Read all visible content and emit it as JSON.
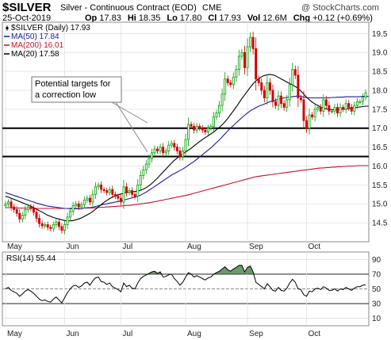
{
  "header": {
    "symbol": "$SILVER",
    "description": "Silver - Continuous Contract (EOD)",
    "exchange": "CME",
    "date": "25-Oct-2019",
    "stats": [
      {
        "label": "Op",
        "value": "17.83"
      },
      {
        "label": "Hi",
        "value": "18.35"
      },
      {
        "label": "Lo",
        "value": "17.80"
      },
      {
        "label": "Cl",
        "value": "17.93"
      },
      {
        "label": "Vol",
        "value": "12.6M"
      },
      {
        "label": "Chg",
        "value": "+0.12 (+0.69%)"
      }
    ],
    "watermark": "@ StockCharts.com",
    "chg_color": "#00a000"
  },
  "legend": [
    {
      "text": "$SILVER (Daily) 17.93",
      "color": "#000000",
      "marker": "candle"
    },
    {
      "text": "MA(50) 17.84",
      "color": "#1a1aa0",
      "marker": "line"
    },
    {
      "text": "MA(200) 16.01",
      "color": "#c8102e",
      "marker": "line"
    },
    {
      "text": "MA(20) 17.58",
      "color": "#000000",
      "marker": "line"
    }
  ],
  "annotation": {
    "lines": [
      "Potential targets for",
      "a correction low"
    ]
  },
  "rsi": {
    "label": "RSI(14) 55.44",
    "levels": [
      70,
      50,
      30
    ],
    "tick_labels": [
      "90",
      "70",
      "50",
      "30",
      "10"
    ]
  },
  "chart_data": {
    "type": "candlestick",
    "price_ylim": [
      14.0,
      19.8
    ],
    "price_ticks": [
      "19.5",
      "19.0",
      "18.5",
      "18.0",
      "17.5",
      "17.0",
      "16.5",
      "16.0",
      "15.5",
      "15.0",
      "14.5"
    ],
    "price_tick_values": [
      19.5,
      19.0,
      18.5,
      18.0,
      17.5,
      17.0,
      16.5,
      16.0,
      15.5,
      15.0,
      14.5
    ],
    "months": [
      "May",
      "Jun",
      "Jul",
      "Aug",
      "Sep",
      "Oct"
    ],
    "month_index": [
      0,
      21,
      41,
      64,
      86,
      107
    ],
    "support_levels": [
      17.0,
      16.25
    ],
    "close": [
      15.0,
      15.05,
      14.92,
      14.85,
      14.75,
      14.6,
      14.7,
      14.85,
      14.92,
      14.88,
      14.78,
      14.62,
      14.48,
      14.42,
      14.45,
      14.38,
      14.35,
      14.45,
      14.52,
      14.4,
      14.3,
      14.45,
      14.65,
      14.8,
      14.95,
      15.0,
      14.92,
      14.98,
      15.1,
      15.15,
      15.05,
      15.25,
      15.45,
      15.5,
      15.38,
      15.35,
      15.3,
      15.38,
      15.25,
      15.2,
      15.15,
      15.05,
      15.45,
      15.3,
      15.35,
      15.25,
      15.2,
      15.5,
      15.75,
      15.9,
      16.05,
      16.2,
      16.35,
      16.45,
      16.4,
      16.5,
      16.35,
      16.4,
      16.55,
      16.6,
      16.5,
      16.4,
      16.25,
      16.4,
      16.7,
      17.1,
      17.05,
      16.95,
      17.05,
      17.0,
      16.95,
      16.9,
      17.0,
      17.05,
      17.3,
      17.4,
      17.6,
      17.9,
      18.3,
      18.2,
      18.15,
      18.35,
      18.55,
      18.9,
      19.0,
      18.6,
      19.15,
      19.4,
      19.1,
      18.3,
      18.2,
      18.0,
      17.8,
      18.2,
      18.0,
      17.7,
      17.6,
      17.85,
      17.65,
      17.55,
      17.75,
      18.15,
      18.55,
      18.4,
      17.8,
      17.75,
      17.2,
      17.0,
      17.35,
      17.3,
      17.5,
      17.55,
      17.45,
      17.75,
      17.6,
      17.45,
      17.45,
      17.55,
      17.4,
      17.55,
      17.5,
      17.65,
      17.55,
      17.45,
      17.6,
      17.7,
      17.7,
      17.82,
      17.93
    ],
    "ma50": [
      15.3,
      15.27,
      15.25,
      15.22,
      15.2,
      15.17,
      15.15,
      15.12,
      15.1,
      15.07,
      15.05,
      15.02,
      15.0,
      14.98,
      14.96,
      14.94,
      14.93,
      14.92,
      14.91,
      14.9,
      14.89,
      14.88,
      14.88,
      14.87,
      14.87,
      14.87,
      14.87,
      14.88,
      14.89,
      14.9,
      14.9,
      14.91,
      14.93,
      14.95,
      14.97,
      14.99,
      15.0,
      15.02,
      15.03,
      15.05,
      15.06,
      15.08,
      15.1,
      15.12,
      15.14,
      15.16,
      15.18,
      15.2,
      15.23,
      15.27,
      15.31,
      15.36,
      15.41,
      15.46,
      15.51,
      15.56,
      15.61,
      15.66,
      15.71,
      15.76,
      15.8,
      15.84,
      15.88,
      15.92,
      15.97,
      16.02,
      16.07,
      16.12,
      16.18,
      16.24,
      16.3,
      16.36,
      16.42,
      16.48,
      16.55,
      16.62,
      16.69,
      16.77,
      16.85,
      16.93,
      17.0,
      17.07,
      17.14,
      17.21,
      17.28,
      17.34,
      17.4,
      17.46,
      17.5,
      17.54,
      17.58,
      17.61,
      17.64,
      17.67,
      17.7,
      17.72,
      17.74,
      17.76,
      17.78,
      17.8,
      17.81,
      17.82,
      17.83,
      17.84,
      17.85,
      17.84,
      17.82,
      17.81,
      17.8,
      17.8,
      17.8,
      17.8,
      17.8,
      17.8,
      17.8,
      17.8,
      17.81,
      17.81,
      17.82,
      17.82,
      17.82,
      17.83,
      17.83,
      17.83,
      17.83,
      17.83,
      17.83,
      17.84,
      17.84,
      17.84
    ],
    "ma200": [
      14.9,
      14.9,
      14.9,
      14.89,
      14.89,
      14.89,
      14.89,
      14.89,
      14.88,
      14.88,
      14.88,
      14.88,
      14.88,
      14.88,
      14.88,
      14.88,
      14.88,
      14.88,
      14.88,
      14.88,
      14.88,
      14.88,
      14.88,
      14.88,
      14.88,
      14.88,
      14.88,
      14.88,
      14.89,
      14.89,
      14.89,
      14.89,
      14.9,
      14.9,
      14.91,
      14.91,
      14.92,
      14.92,
      14.93,
      14.93,
      14.94,
      14.94,
      14.95,
      14.96,
      14.96,
      14.97,
      14.98,
      14.99,
      15.0,
      15.01,
      15.02,
      15.03,
      15.04,
      15.06,
      15.07,
      15.09,
      15.1,
      15.12,
      15.13,
      15.15,
      15.16,
      15.18,
      15.19,
      15.21,
      15.22,
      15.24,
      15.26,
      15.28,
      15.3,
      15.32,
      15.34,
      15.36,
      15.38,
      15.4,
      15.42,
      15.44,
      15.46,
      15.48,
      15.5,
      15.52,
      15.54,
      15.56,
      15.58,
      15.6,
      15.62,
      15.64,
      15.66,
      15.68,
      15.7,
      15.72,
      15.73,
      15.74,
      15.75,
      15.76,
      15.77,
      15.78,
      15.79,
      15.8,
      15.81,
      15.82,
      15.83,
      15.84,
      15.85,
      15.86,
      15.87,
      15.88,
      15.89,
      15.9,
      15.91,
      15.92,
      15.93,
      15.94,
      15.95,
      15.95,
      15.96,
      15.96,
      15.97,
      15.97,
      15.98,
      15.98,
      15.99,
      15.99,
      16.0,
      16.0,
      16.0,
      16.01,
      16.01,
      16.01,
      16.01,
      16.01
    ],
    "ma20": [
      15.2,
      15.18,
      15.15,
      15.12,
      15.09,
      15.06,
      15.03,
      15.0,
      14.97,
      14.94,
      14.9,
      14.86,
      14.82,
      14.78,
      14.74,
      14.7,
      14.67,
      14.64,
      14.62,
      14.6,
      14.58,
      14.56,
      14.55,
      14.55,
      14.56,
      14.58,
      14.6,
      14.63,
      14.67,
      14.71,
      14.75,
      14.8,
      14.86,
      14.92,
      14.98,
      15.04,
      15.09,
      15.14,
      15.18,
      15.21,
      15.24,
      15.26,
      15.28,
      15.3,
      15.31,
      15.32,
      15.33,
      15.34,
      15.36,
      15.39,
      15.43,
      15.48,
      15.54,
      15.61,
      15.68,
      15.76,
      15.84,
      15.92,
      16.0,
      16.08,
      16.15,
      16.21,
      16.27,
      16.32,
      16.37,
      16.42,
      16.47,
      16.53,
      16.59,
      16.65,
      16.7,
      16.75,
      16.8,
      16.85,
      16.9,
      16.96,
      17.02,
      17.09,
      17.17,
      17.26,
      17.36,
      17.46,
      17.56,
      17.67,
      17.78,
      17.88,
      17.98,
      18.08,
      18.17,
      18.25,
      18.31,
      18.36,
      18.39,
      18.41,
      18.42,
      18.41,
      18.38,
      18.34,
      18.3,
      18.26,
      18.22,
      18.18,
      18.14,
      18.1,
      18.05,
      17.98,
      17.9,
      17.82,
      17.75,
      17.69,
      17.64,
      17.6,
      17.56,
      17.53,
      17.51,
      17.5,
      17.49,
      17.49,
      17.49,
      17.5,
      17.5,
      17.51,
      17.52,
      17.53,
      17.54,
      17.55,
      17.56,
      17.57,
      17.58,
      17.58
    ],
    "rsi": [
      50,
      52,
      48,
      46,
      44,
      40,
      43,
      47,
      49,
      47,
      44,
      40,
      36,
      34,
      35,
      33,
      32,
      36,
      39,
      35,
      31,
      38,
      45,
      50,
      54,
      55,
      52,
      54,
      58,
      59,
      55,
      61,
      65,
      66,
      60,
      59,
      56,
      58,
      53,
      51,
      49,
      46,
      58,
      53,
      55,
      51,
      50,
      58,
      64,
      67,
      69,
      71,
      73,
      74,
      71,
      73,
      66,
      67,
      69,
      70,
      64,
      60,
      55,
      59,
      66,
      72,
      70,
      66,
      68,
      66,
      64,
      62,
      65,
      66,
      70,
      72,
      74,
      77,
      80,
      76,
      74,
      77,
      79,
      82,
      82,
      73,
      79,
      81,
      73,
      59,
      56,
      53,
      50,
      57,
      53,
      48,
      47,
      52,
      48,
      47,
      51,
      58,
      63,
      59,
      50,
      49,
      42,
      40,
      47,
      46,
      50,
      51,
      49,
      53,
      51,
      48,
      48,
      50,
      47,
      50,
      49,
      52,
      50,
      48,
      51,
      53,
      53,
      55,
      55.44
    ]
  }
}
